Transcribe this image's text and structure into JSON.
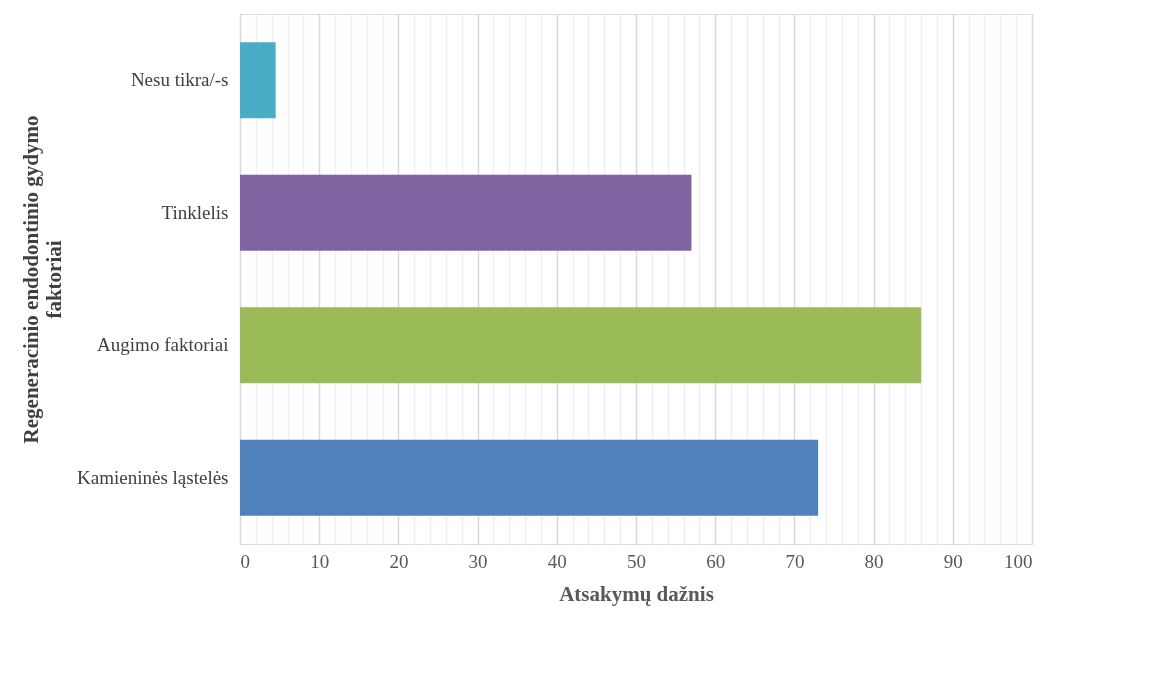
{
  "chart_data": {
    "type": "bar",
    "orientation": "horizontal",
    "xlabel": "Atsakymų dažnis",
    "ylabel": "Regeneracinio endodontinio gydymo faktoriai",
    "categories": [
      "Nesu tikra/-s",
      "Tinklelis",
      "Augimo faktoriai",
      "Kamieninės ląstelės"
    ],
    "values": [
      4.5,
      57,
      86,
      73
    ],
    "colors": [
      "#4bacc6",
      "#8064a2",
      "#9bbb59",
      "#4f81bd"
    ],
    "xlim": [
      0,
      100
    ],
    "xticks": [
      0,
      {
        "value": 2,
        "label": null
      },
      {
        "value": 4,
        "label": null
      },
      {
        "value": 6,
        "label": null
      },
      {
        "value": 8,
        "label": null
      },
      10,
      {
        "value": 12,
        "label": null
      },
      {
        "value": 14,
        "label": null
      },
      {
        "value": 16,
        "label": null
      },
      {
        "value": 18,
        "label": null
      },
      20,
      {
        "value": 22,
        "label": null
      },
      {
        "value": 24,
        "label": null
      },
      {
        "value": 26,
        "label": null
      },
      {
        "value": 28,
        "label": null
      },
      30,
      {
        "value": 32,
        "label": null
      },
      {
        "value": 34,
        "label": null
      },
      {
        "value": 36,
        "label": null
      },
      {
        "value": 38,
        "label": null
      },
      40,
      {
        "value": 42,
        "label": null
      },
      {
        "value": 44,
        "label": null
      },
      {
        "value": 46,
        "label": null
      },
      {
        "value": 48,
        "label": null
      },
      50,
      {
        "value": 52,
        "label": null
      },
      {
        "value": 54,
        "label": null
      },
      {
        "value": 56,
        "label": null
      },
      {
        "value": 58,
        "label": null
      },
      60,
      {
        "value": 62,
        "label": null
      },
      {
        "value": 64,
        "label": null
      },
      {
        "value": 66,
        "label": null
      },
      {
        "value": 68,
        "label": null
      },
      70,
      {
        "value": 72,
        "label": null
      },
      {
        "value": 74,
        "label": null
      },
      {
        "value": 76,
        "label": null
      },
      {
        "value": 78,
        "label": null
      },
      80,
      {
        "value": 82,
        "label": null
      },
      {
        "value": 84,
        "label": null
      },
      {
        "value": 86,
        "label": null
      },
      {
        "value": 88,
        "label": null
      },
      90,
      {
        "value": 92,
        "label": null
      },
      {
        "value": 94,
        "label": null
      },
      {
        "value": 96,
        "label": null
      },
      {
        "value": 98,
        "label": null
      },
      100
    ],
    "grid": "x"
  }
}
